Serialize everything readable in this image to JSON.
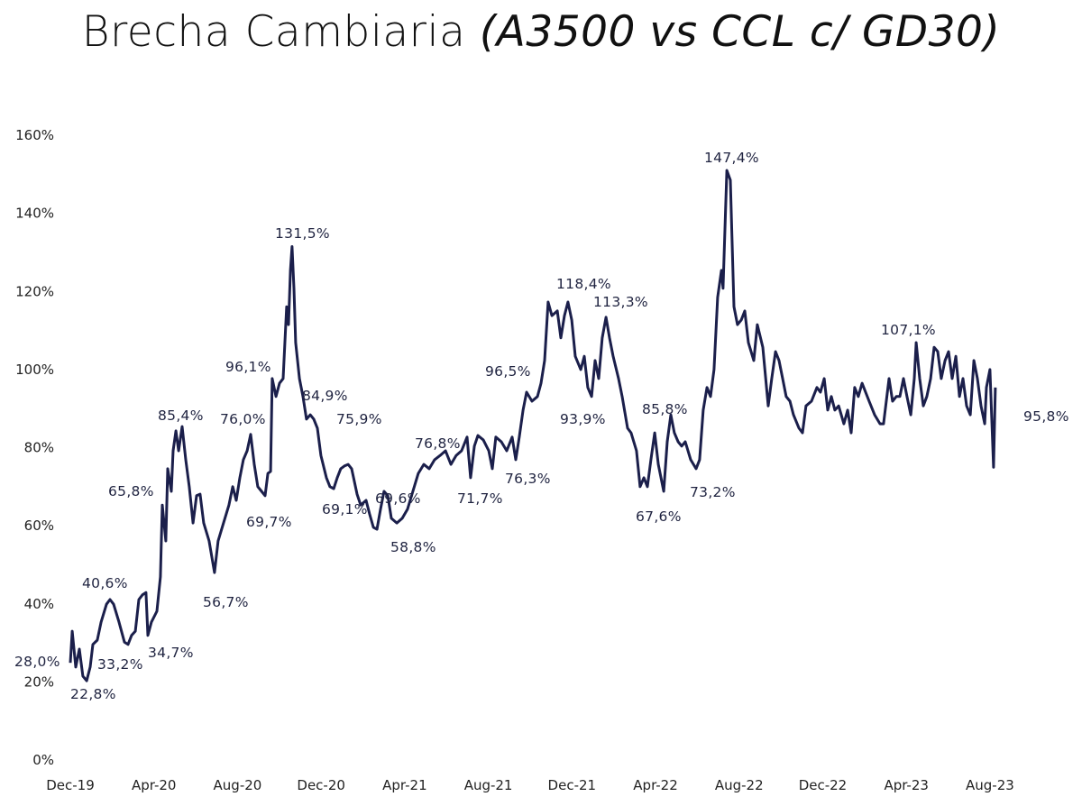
{
  "chart_data": {
    "type": "line",
    "title": "Brecha Cambiaria",
    "subtitle": "(A3500 vs CCL c/ GD30)",
    "xlabel": "",
    "ylabel": "",
    "x_unit": "months since Dec-19",
    "ylim": [
      0,
      160
    ],
    "yticks": [
      "0%",
      "20%",
      "40%",
      "60%",
      "80%",
      "100%",
      "120%",
      "140%",
      "160%"
    ],
    "ytick_values": [
      0,
      20,
      40,
      60,
      80,
      100,
      120,
      140,
      160
    ],
    "xticks": [
      "Dec-19",
      "Apr-20",
      "Aug-20",
      "Dec-20",
      "Apr-21",
      "Aug-21",
      "Dec-21",
      "Apr-22",
      "Aug-22",
      "Dec-22",
      "Apr-23",
      "Aug-23"
    ],
    "xtick_values": [
      0,
      4,
      8,
      12,
      16,
      20,
      24,
      28,
      32,
      36,
      40,
      44
    ],
    "grid": false,
    "line_color": "#1b1f4b",
    "series": [
      {
        "name": "Brecha",
        "points": [
          [
            0,
            24.9
          ],
          [
            0.09,
            33.0
          ],
          [
            0.26,
            23.8
          ],
          [
            0.43,
            28.4
          ],
          [
            0.6,
            21.5
          ],
          [
            0.78,
            20.3
          ],
          [
            0.95,
            23.8
          ],
          [
            1.08,
            29.6
          ],
          [
            1.29,
            30.7
          ],
          [
            1.47,
            35.3
          ],
          [
            1.73,
            39.9
          ],
          [
            1.9,
            41.1
          ],
          [
            2.07,
            39.9
          ],
          [
            2.33,
            35.3
          ],
          [
            2.59,
            30.2
          ],
          [
            2.76,
            29.6
          ],
          [
            2.93,
            31.9
          ],
          [
            3.11,
            33.0
          ],
          [
            3.28,
            41.1
          ],
          [
            3.45,
            42.3
          ],
          [
            3.62,
            42.9
          ],
          [
            3.71,
            31.9
          ],
          [
            3.88,
            35.3
          ],
          [
            4.14,
            38.1
          ],
          [
            4.31,
            46.9
          ],
          [
            4.4,
            65.3
          ],
          [
            4.57,
            56.1
          ],
          [
            4.66,
            74.6
          ],
          [
            4.83,
            68.8
          ],
          [
            4.92,
            79.2
          ],
          [
            5.05,
            84.3
          ],
          [
            5.18,
            79.2
          ],
          [
            5.35,
            85.4
          ],
          [
            5.52,
            76.9
          ],
          [
            5.69,
            70.0
          ],
          [
            5.87,
            60.7
          ],
          [
            6.04,
            67.7
          ],
          [
            6.21,
            68.1
          ],
          [
            6.38,
            60.7
          ],
          [
            6.64,
            56.1
          ],
          [
            6.9,
            48.0
          ],
          [
            7.07,
            56.1
          ],
          [
            7.33,
            60.7
          ],
          [
            7.59,
            65.3
          ],
          [
            7.77,
            70.0
          ],
          [
            7.94,
            66.5
          ],
          [
            8.11,
            72.3
          ],
          [
            8.28,
            76.9
          ],
          [
            8.46,
            79.2
          ],
          [
            8.63,
            83.4
          ],
          [
            8.8,
            75.7
          ],
          [
            8.97,
            70.0
          ],
          [
            9.15,
            68.8
          ],
          [
            9.32,
            67.7
          ],
          [
            9.45,
            73.4
          ],
          [
            9.58,
            73.9
          ],
          [
            9.66,
            97.7
          ],
          [
            9.84,
            93.1
          ],
          [
            10.01,
            96.5
          ],
          [
            10.18,
            97.7
          ],
          [
            10.35,
            116.1
          ],
          [
            10.44,
            111.5
          ],
          [
            10.53,
            125.4
          ],
          [
            10.61,
            131.5
          ],
          [
            10.7,
            120.8
          ],
          [
            10.78,
            106.9
          ],
          [
            10.96,
            97.7
          ],
          [
            11.13,
            93.1
          ],
          [
            11.3,
            87.3
          ],
          [
            11.48,
            88.4
          ],
          [
            11.65,
            87.3
          ],
          [
            11.82,
            85.0
          ],
          [
            11.99,
            78.0
          ],
          [
            12.25,
            72.3
          ],
          [
            12.42,
            70.0
          ],
          [
            12.6,
            69.5
          ],
          [
            12.77,
            72.3
          ],
          [
            12.94,
            74.6
          ],
          [
            13.11,
            75.3
          ],
          [
            13.29,
            75.7
          ],
          [
            13.46,
            74.6
          ],
          [
            13.72,
            68.1
          ],
          [
            13.89,
            65.3
          ],
          [
            14.15,
            66.5
          ],
          [
            14.32,
            63.0
          ],
          [
            14.5,
            59.6
          ],
          [
            14.67,
            59.1
          ],
          [
            14.84,
            64.2
          ],
          [
            15.01,
            68.8
          ],
          [
            15.19,
            67.7
          ],
          [
            15.36,
            61.9
          ],
          [
            15.62,
            60.7
          ],
          [
            15.88,
            61.9
          ],
          [
            16.13,
            64.2
          ],
          [
            16.39,
            68.8
          ],
          [
            16.65,
            73.4
          ],
          [
            16.91,
            75.7
          ],
          [
            17.17,
            74.6
          ],
          [
            17.43,
            76.9
          ],
          [
            17.69,
            78.0
          ],
          [
            17.95,
            79.2
          ],
          [
            18.21,
            75.7
          ],
          [
            18.46,
            78.0
          ],
          [
            18.72,
            79.2
          ],
          [
            18.98,
            82.7
          ],
          [
            19.15,
            72.3
          ],
          [
            19.33,
            80.4
          ],
          [
            19.5,
            83.1
          ],
          [
            19.76,
            82.0
          ],
          [
            20.02,
            79.2
          ],
          [
            20.19,
            74.6
          ],
          [
            20.36,
            82.7
          ],
          [
            20.62,
            81.5
          ],
          [
            20.88,
            79.2
          ],
          [
            21.14,
            82.7
          ],
          [
            21.31,
            76.9
          ],
          [
            21.48,
            82.7
          ],
          [
            21.66,
            89.6
          ],
          [
            21.83,
            94.2
          ],
          [
            22.09,
            91.9
          ],
          [
            22.35,
            93.1
          ],
          [
            22.52,
            96.5
          ],
          [
            22.69,
            102.3
          ],
          [
            22.86,
            117.3
          ],
          [
            23.04,
            113.8
          ],
          [
            23.3,
            115.0
          ],
          [
            23.47,
            108.1
          ],
          [
            23.64,
            113.8
          ],
          [
            23.81,
            117.3
          ],
          [
            23.99,
            112.7
          ],
          [
            24.16,
            103.4
          ],
          [
            24.42,
            100.0
          ],
          [
            24.59,
            103.4
          ],
          [
            24.76,
            95.4
          ],
          [
            24.94,
            93.1
          ],
          [
            25.11,
            102.3
          ],
          [
            25.28,
            97.7
          ],
          [
            25.45,
            108.1
          ],
          [
            25.63,
            113.4
          ],
          [
            25.8,
            108.1
          ],
          [
            25.97,
            103.4
          ],
          [
            26.23,
            97.7
          ],
          [
            26.4,
            93.1
          ],
          [
            26.66,
            85.0
          ],
          [
            26.83,
            83.8
          ],
          [
            27.09,
            79.2
          ],
          [
            27.26,
            70.0
          ],
          [
            27.44,
            72.3
          ],
          [
            27.61,
            70.0
          ],
          [
            27.78,
            76.9
          ],
          [
            27.96,
            83.8
          ],
          [
            28.13,
            75.7
          ],
          [
            28.39,
            68.8
          ],
          [
            28.56,
            81.5
          ],
          [
            28.73,
            88.4
          ],
          [
            28.9,
            83.8
          ],
          [
            29.08,
            81.5
          ],
          [
            29.25,
            80.4
          ],
          [
            29.42,
            81.5
          ],
          [
            29.68,
            76.9
          ],
          [
            29.94,
            74.6
          ],
          [
            30.11,
            76.9
          ],
          [
            30.28,
            89.6
          ],
          [
            30.46,
            95.4
          ],
          [
            30.63,
            93.1
          ],
          [
            30.8,
            100.0
          ],
          [
            30.97,
            118.5
          ],
          [
            31.15,
            125.4
          ],
          [
            31.23,
            120.8
          ],
          [
            31.41,
            151.0
          ],
          [
            31.58,
            148.5
          ],
          [
            31.75,
            116.1
          ],
          [
            31.92,
            111.5
          ],
          [
            32.1,
            112.7
          ],
          [
            32.27,
            115.0
          ],
          [
            32.44,
            106.9
          ],
          [
            32.7,
            102.3
          ],
          [
            32.87,
            111.5
          ],
          [
            33.13,
            105.7
          ],
          [
            33.39,
            90.7
          ],
          [
            33.56,
            97.7
          ],
          [
            33.74,
            104.6
          ],
          [
            33.91,
            102.3
          ],
          [
            34.08,
            97.7
          ],
          [
            34.25,
            93.1
          ],
          [
            34.43,
            91.9
          ],
          [
            34.6,
            88.4
          ],
          [
            34.86,
            85.0
          ],
          [
            35.03,
            83.8
          ],
          [
            35.2,
            90.7
          ],
          [
            35.46,
            91.9
          ],
          [
            35.72,
            95.4
          ],
          [
            35.89,
            94.2
          ],
          [
            36.07,
            97.7
          ],
          [
            36.24,
            89.6
          ],
          [
            36.41,
            93.1
          ],
          [
            36.58,
            89.6
          ],
          [
            36.76,
            90.7
          ],
          [
            37.01,
            86.1
          ],
          [
            37.19,
            89.6
          ],
          [
            37.36,
            83.8
          ],
          [
            37.53,
            95.4
          ],
          [
            37.7,
            93.1
          ],
          [
            37.88,
            96.5
          ],
          [
            38.05,
            94.2
          ],
          [
            38.22,
            91.9
          ],
          [
            38.48,
            88.4
          ],
          [
            38.74,
            86.1
          ],
          [
            38.91,
            86.1
          ],
          [
            39.17,
            97.7
          ],
          [
            39.34,
            91.9
          ],
          [
            39.52,
            93.1
          ],
          [
            39.69,
            93.1
          ],
          [
            39.86,
            97.7
          ],
          [
            40.03,
            93.1
          ],
          [
            40.21,
            88.4
          ],
          [
            40.38,
            97.7
          ],
          [
            40.47,
            106.9
          ],
          [
            40.64,
            97.7
          ],
          [
            40.81,
            90.7
          ],
          [
            40.98,
            93.1
          ],
          [
            41.16,
            97.7
          ],
          [
            41.33,
            105.7
          ],
          [
            41.5,
            104.6
          ],
          [
            41.67,
            97.7
          ],
          [
            41.85,
            102.3
          ],
          [
            42.02,
            104.6
          ],
          [
            42.19,
            97.7
          ],
          [
            42.37,
            103.4
          ],
          [
            42.54,
            93.1
          ],
          [
            42.71,
            97.7
          ],
          [
            42.88,
            90.7
          ],
          [
            43.06,
            88.4
          ],
          [
            43.23,
            102.3
          ],
          [
            43.4,
            97.7
          ],
          [
            43.57,
            90.7
          ],
          [
            43.75,
            86.1
          ],
          [
            43.83,
            95.4
          ],
          [
            44.0,
            100.0
          ],
          [
            44.17,
            75.0
          ],
          [
            44.26,
            95.4
          ]
        ]
      }
    ],
    "annotations": [
      "28,0%",
      "22,8%",
      "40,6%",
      "33,2%",
      "34,7%",
      "65,8%",
      "85,4%",
      "56,7%",
      "76,0%",
      "69,7%",
      "96,1%",
      "131,5%",
      "84,9%",
      "75,9%",
      "69,1%",
      "69,6%",
      "58,8%",
      "76,8%",
      "71,7%",
      "96,5%",
      "76,3%",
      "118,4%",
      "113,3%",
      "93,9%",
      "85,8%",
      "67,6%",
      "73,2%",
      "147,4%",
      "107,1%",
      "95,8%"
    ]
  }
}
